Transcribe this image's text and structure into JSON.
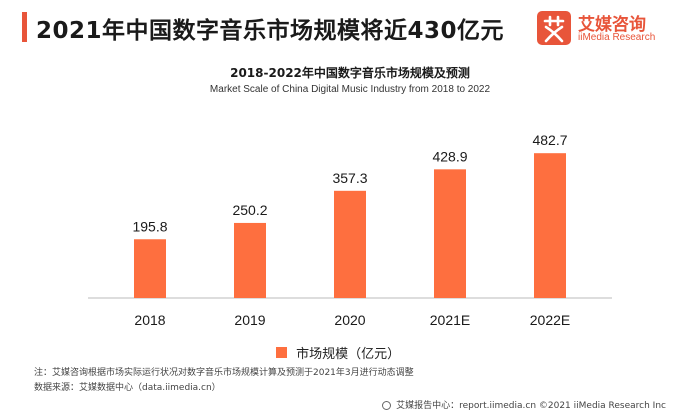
{
  "header": {
    "headline": "2021年中国数字音乐市场规模将近430亿元"
  },
  "brand": {
    "name_cn": "艾媒咨询",
    "name_en": "iiMedia Research",
    "icon": "logo-mark-icon",
    "color": "#e8553a"
  },
  "chart_data": {
    "type": "bar",
    "title": "2018-2022年中国数字音乐市场规模及预测",
    "subtitle": "Market Scale of China Digital Music Industry from 2018 to 2022",
    "categories": [
      "2018",
      "2019",
      "2020",
      "2021E",
      "2022E"
    ],
    "series": [
      {
        "name": "市场规模（亿元）",
        "values": [
          195.8,
          250.2,
          357.3,
          428.9,
          482.7
        ]
      }
    ],
    "ylim": [
      0,
      500
    ],
    "grid": false,
    "legend": "bottom",
    "bar_color": "#fe6f3f"
  },
  "notes": {
    "note": "注：艾媒咨询根据市场实际运行状况对数字音乐市场规模计算及预测于2021年3月进行动态调整",
    "source": "数据来源：艾媒数据中心（data.iimedia.cn）",
    "footer": "艾媒报告中心：report.iimedia.cn ©2021  iiMedia Research  Inc"
  }
}
